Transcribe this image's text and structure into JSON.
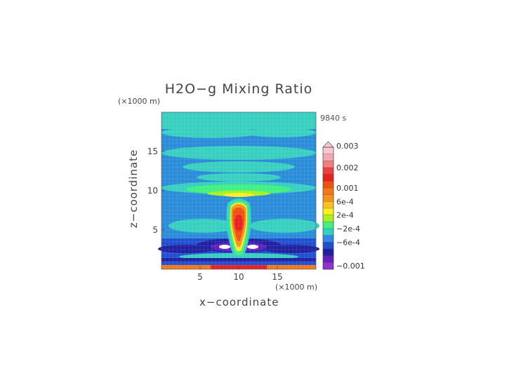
{
  "chart_data": {
    "type": "heatmap",
    "title": "H2O−g Mixing Ratio",
    "xlabel": "x−coordinate",
    "ylabel": "z−coordinate",
    "x_unit": "(×1000 m)",
    "y_unit": "(×1000 m)",
    "timestamp": "9840 s",
    "xlim": [
      0,
      20
    ],
    "ylim": [
      0,
      20
    ],
    "x_ticks": [
      5,
      10,
      15
    ],
    "y_ticks": [
      5,
      10,
      15
    ],
    "colorbar": {
      "labels": [
        "0.003",
        "0.002",
        "0.001",
        "6e-4",
        "2e-4",
        "−2e-4",
        "−6e-4",
        "−0.001"
      ],
      "label_values": [
        0.003,
        0.002,
        0.001,
        0.0006,
        0.0002,
        -0.0002,
        -0.0006,
        -0.001
      ],
      "bands": [
        {
          "color": "#f8c8d0"
        },
        {
          "color": "#f4a8b4"
        },
        {
          "color": "#f08080"
        },
        {
          "color": "#ee4040"
        },
        {
          "color": "#e82020"
        },
        {
          "color": "#f05010"
        },
        {
          "color": "#f47818"
        },
        {
          "color": "#f89020"
        },
        {
          "color": "#fcc020"
        },
        {
          "color": "#f8f020"
        },
        {
          "color": "#a8f020"
        },
        {
          "color": "#40f080"
        },
        {
          "color": "#30d0c8"
        },
        {
          "color": "#3088e8"
        },
        {
          "color": "#2050d0"
        },
        {
          "color": "#2020a0"
        },
        {
          "color": "#6020c0"
        },
        {
          "color": "#9030d0"
        }
      ]
    }
  }
}
